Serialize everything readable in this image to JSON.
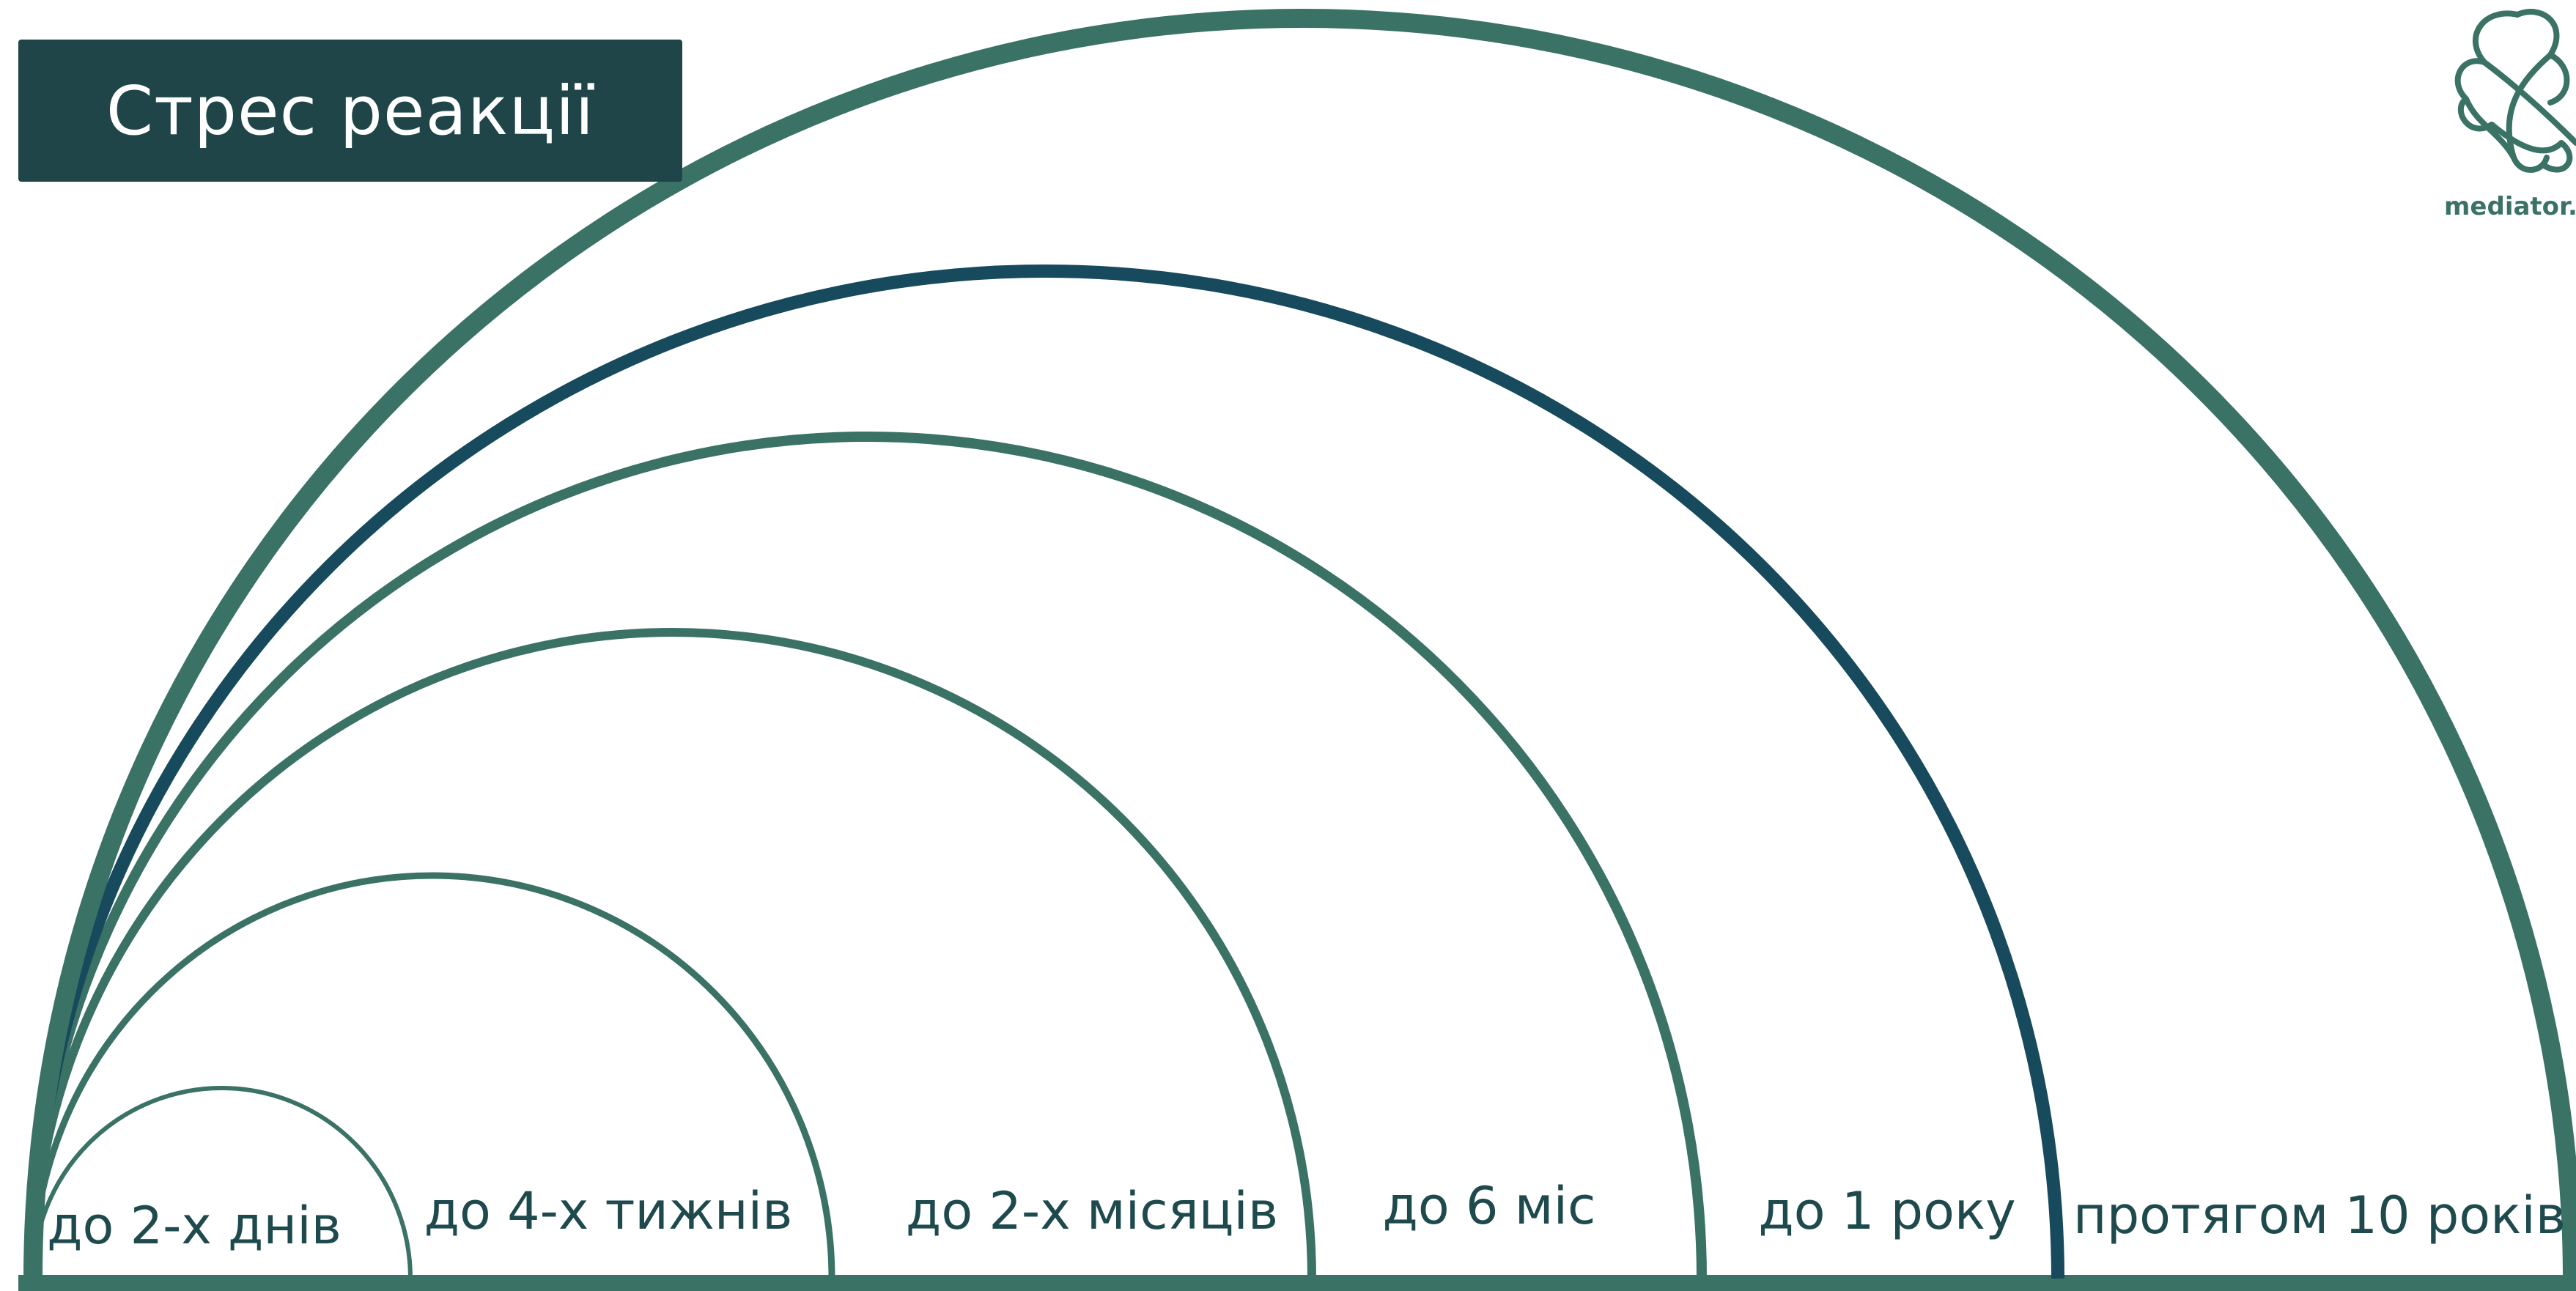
{
  "title": "Стрес реакції",
  "logo": {
    "name": "mediator-logo",
    "text": "mediator.in",
    "color": "#3a7265"
  },
  "colors": {
    "title_bg": "#1f4548",
    "arc_green": "#3a7265",
    "arc_blue": "#164a5c",
    "label_text": "#1e4a4e"
  },
  "arcs": [
    {
      "label": "до 2-х днів",
      "color": "green"
    },
    {
      "label": "до 4-х тижнів",
      "color": "green"
    },
    {
      "label": "до 2-х місяців",
      "color": "green"
    },
    {
      "label": "до 6 міс",
      "color": "green"
    },
    {
      "label": "до 1 року",
      "color": "blue"
    },
    {
      "label": "протягом 10 років",
      "color": "green"
    }
  ]
}
